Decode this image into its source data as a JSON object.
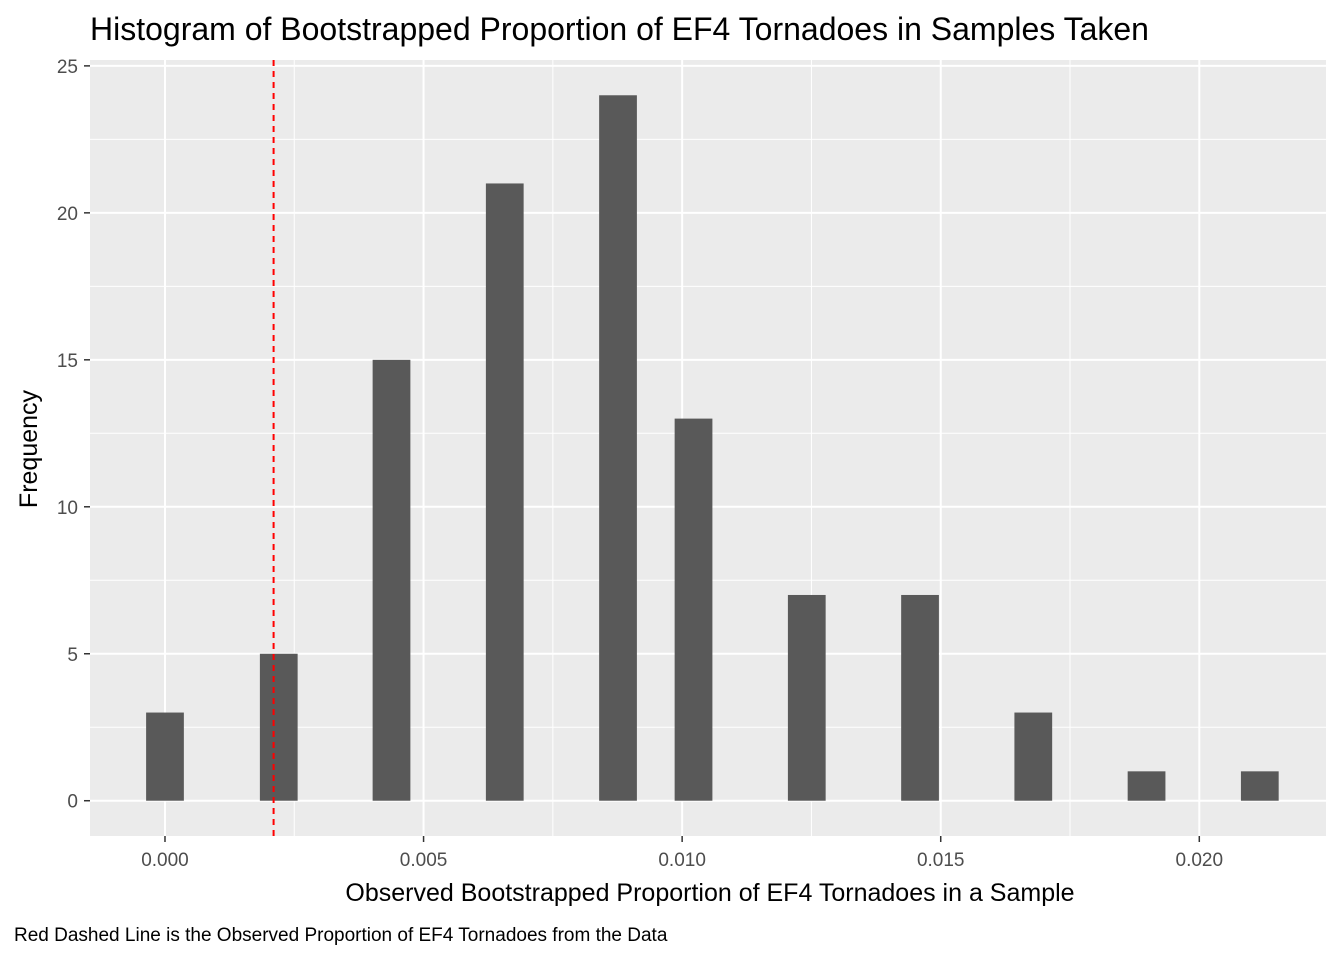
{
  "chart_data": {
    "type": "bar",
    "title": "Histogram of Bootstrapped Proportion of EF4 Tornadoes in Samples Taken",
    "xlabel": "Observed Bootstrapped Proportion of EF4 Tornadoes in a Sample",
    "ylabel": "Frequency",
    "caption": "Red Dashed Line is the Observed Proportion of EF4 Tornadoes from the Data",
    "xlim": [
      -0.00145,
      0.02245
    ],
    "ylim": [
      -1.2,
      25.2
    ],
    "x_ticks": [
      0,
      0.005,
      0.01,
      0.015,
      0.02
    ],
    "x_tick_labels": [
      "0.000",
      "0.005",
      "0.010",
      "0.015",
      "0.020"
    ],
    "y_ticks": [
      0,
      5,
      10,
      15,
      20,
      25
    ],
    "y_tick_labels": [
      "0",
      "5",
      "10",
      "15",
      "20",
      "25"
    ],
    "bin_width": 0.00073,
    "bars": [
      {
        "x": 0.0,
        "count": 3
      },
      {
        "x": 0.0022,
        "count": 5
      },
      {
        "x": 0.00438,
        "count": 15
      },
      {
        "x": 0.00657,
        "count": 21
      },
      {
        "x": 0.00876,
        "count": 24
      },
      {
        "x": 0.01022,
        "count": 13
      },
      {
        "x": 0.01241,
        "count": 7
      },
      {
        "x": 0.0146,
        "count": 7
      },
      {
        "x": 0.01679,
        "count": 3
      },
      {
        "x": 0.01898,
        "count": 1
      },
      {
        "x": 0.02117,
        "count": 1
      }
    ],
    "reference_line": {
      "x": 0.0021,
      "style": "dashed",
      "color": "#ff0000"
    },
    "grid": true,
    "colors": {
      "bar": "#595959",
      "panel": "#ebebeb",
      "grid": "#ffffff",
      "tick_text": "#4d4d4d"
    }
  }
}
